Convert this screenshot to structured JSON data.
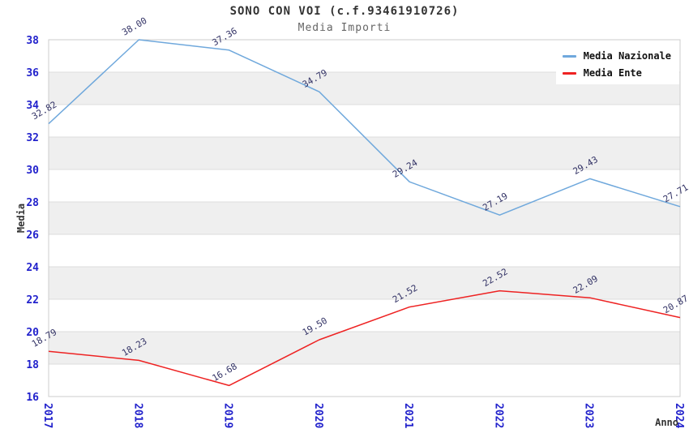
{
  "chart_data": {
    "type": "line",
    "title": "SONO CON VOI (c.f.93461910726)",
    "subtitle": "Media Importi",
    "xlabel": "Anno",
    "ylabel": "Media",
    "x": [
      "2017",
      "2018",
      "2019",
      "2020",
      "2021",
      "2022",
      "2023",
      "2024"
    ],
    "series": [
      {
        "name": "Media Nazionale",
        "color": "#6fa8dc",
        "values": [
          32.82,
          38.0,
          37.36,
          34.79,
          29.24,
          27.19,
          29.43,
          27.71
        ]
      },
      {
        "name": "Media Ente",
        "color": "#ee2222",
        "values": [
          18.79,
          18.23,
          16.68,
          19.5,
          21.52,
          22.52,
          22.09,
          20.87
        ]
      }
    ],
    "ylim": [
      16,
      38
    ],
    "ytick_step": 2,
    "grid": true,
    "legend_position": "top-right",
    "colors": {
      "tick_label": "#2222cc",
      "value_label": "#333366",
      "band_fill": "#efefef",
      "gridline": "#dddddd",
      "plot_border": "#cccccc",
      "title": "#333333",
      "subtitle": "#666666"
    }
  }
}
